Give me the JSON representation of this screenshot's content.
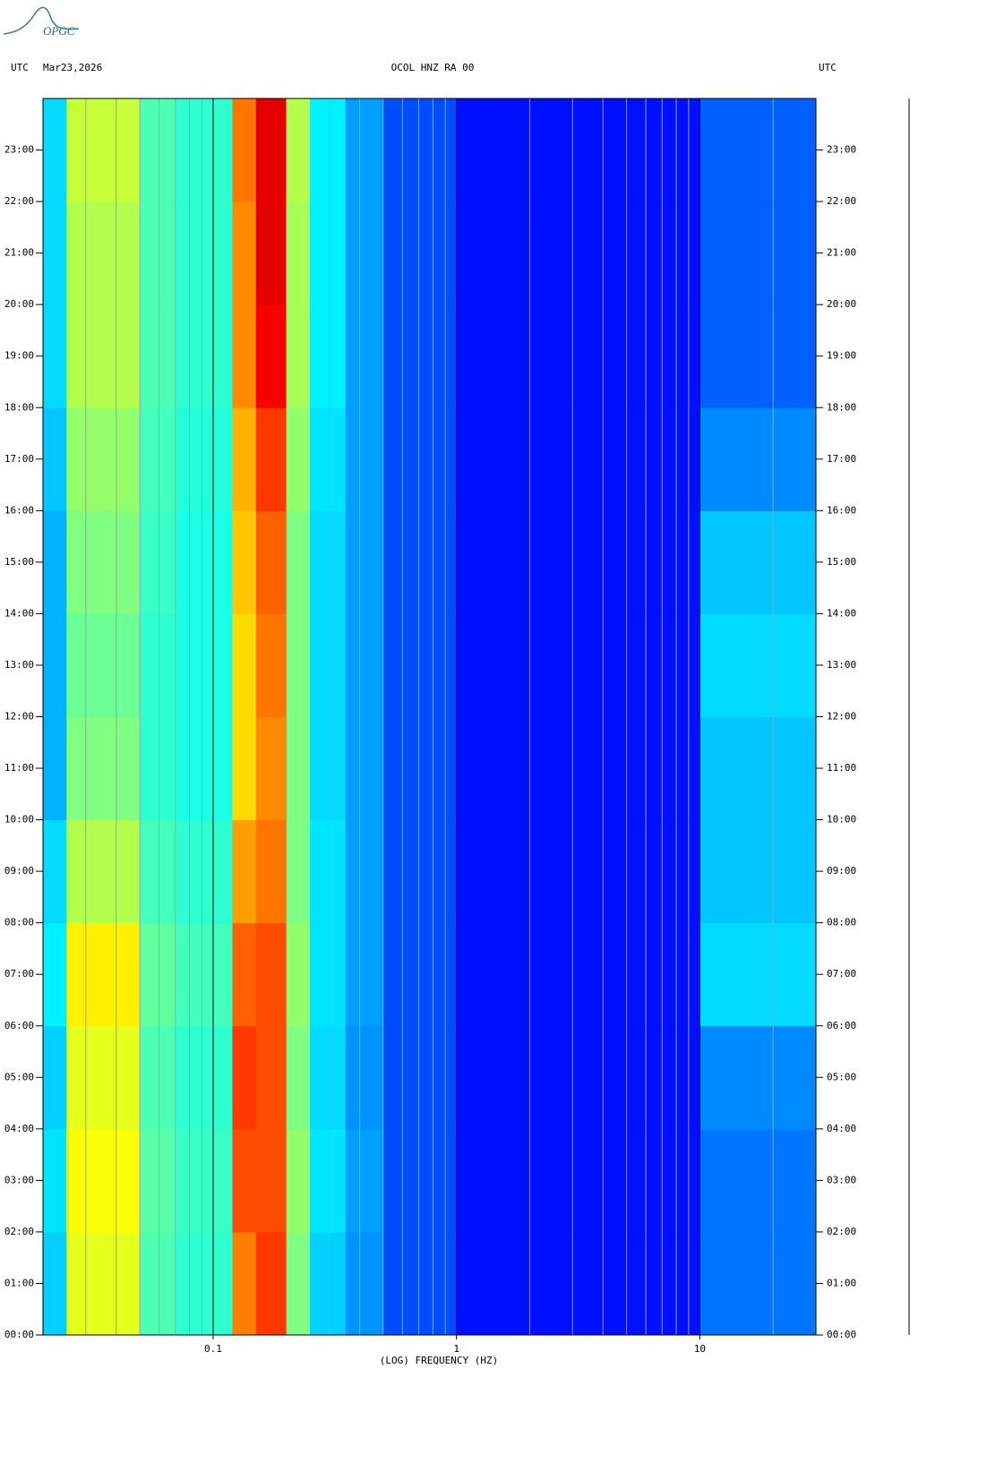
{
  "chart_data": {
    "type": "spectrogram",
    "logo": "OPGC",
    "time_zone": "UTC",
    "date": "Mar23,2026",
    "title": "OCOL HNZ RA 00",
    "x_label": "(LOG) FREQUENCY (HZ)",
    "x_log": true,
    "colormap": "jet",
    "xlim": [
      0.02,
      30
    ],
    "xticks": [
      {
        "value": 0.1,
        "label": "0.1"
      },
      1,
      10
    ],
    "xminorticks": [
      0.03,
      0.04,
      0.05,
      0.06,
      0.07,
      0.08,
      0.09,
      0.2,
      0.3,
      0.4,
      0.5,
      0.6,
      0.7,
      0.8,
      0.9,
      2,
      3,
      4,
      5,
      6,
      7,
      8,
      9,
      20
    ],
    "ylim": [
      0,
      24
    ],
    "yticks": [
      {
        "value": 0,
        "label": "00:00"
      },
      {
        "value": 1,
        "label": "01:00"
      },
      {
        "value": 2,
        "label": "02:00"
      },
      {
        "value": 3,
        "label": "03:00"
      },
      {
        "value": 4,
        "label": "04:00"
      },
      {
        "value": 5,
        "label": "05:00"
      },
      {
        "value": 6,
        "label": "06:00"
      },
      {
        "value": 7,
        "label": "07:00"
      },
      {
        "value": 8,
        "label": "08:00"
      },
      {
        "value": 9,
        "label": "09:00"
      },
      {
        "value": 10,
        "label": "10:00"
      },
      {
        "value": 11,
        "label": "11:00"
      },
      {
        "value": 12,
        "label": "12:00"
      },
      {
        "value": 13,
        "label": "13:00"
      },
      {
        "value": 14,
        "label": "14:00"
      },
      {
        "value": 15,
        "label": "15:00"
      },
      {
        "value": 16,
        "label": "16:00"
      },
      {
        "value": 17,
        "label": "17:00"
      },
      {
        "value": 18,
        "label": "18:00"
      },
      {
        "value": 19,
        "label": "19:00"
      },
      {
        "value": 20,
        "label": "20:00"
      },
      {
        "value": 21,
        "label": "21:00"
      },
      {
        "value": 22,
        "label": "22:00"
      },
      {
        "value": 23,
        "label": "23:00"
      }
    ],
    "bins": [
      0.02,
      0.025,
      0.05,
      0.07,
      0.12,
      0.15,
      0.2,
      0.25,
      0.35,
      0.5,
      1,
      10,
      30
    ],
    "y_bins": [
      0,
      2,
      4,
      6,
      8,
      10,
      12,
      14,
      16,
      18,
      20,
      22,
      24
    ],
    "z": [
      [
        0.33,
        0.6,
        0.45,
        0.42,
        0.75,
        0.82,
        0.5,
        0.33,
        0.27,
        0.2,
        0.14,
        0.24
      ],
      [
        0.35,
        0.62,
        0.46,
        0.43,
        0.8,
        0.8,
        0.52,
        0.35,
        0.28,
        0.2,
        0.14,
        0.24
      ],
      [
        0.33,
        0.6,
        0.45,
        0.42,
        0.82,
        0.8,
        0.5,
        0.34,
        0.27,
        0.2,
        0.14,
        0.26
      ],
      [
        0.36,
        0.64,
        0.47,
        0.44,
        0.78,
        0.8,
        0.52,
        0.35,
        0.28,
        0.2,
        0.14,
        0.34
      ],
      [
        0.34,
        0.55,
        0.44,
        0.42,
        0.72,
        0.76,
        0.5,
        0.35,
        0.28,
        0.2,
        0.14,
        0.32
      ],
      [
        0.3,
        0.5,
        0.42,
        0.4,
        0.66,
        0.74,
        0.5,
        0.34,
        0.28,
        0.2,
        0.14,
        0.32
      ],
      [
        0.3,
        0.48,
        0.42,
        0.4,
        0.66,
        0.76,
        0.5,
        0.34,
        0.28,
        0.2,
        0.14,
        0.34
      ],
      [
        0.3,
        0.5,
        0.43,
        0.4,
        0.68,
        0.78,
        0.5,
        0.34,
        0.28,
        0.2,
        0.14,
        0.32
      ],
      [
        0.32,
        0.52,
        0.44,
        0.41,
        0.7,
        0.82,
        0.52,
        0.35,
        0.28,
        0.2,
        0.14,
        0.26
      ],
      [
        0.34,
        0.55,
        0.45,
        0.42,
        0.74,
        0.88,
        0.54,
        0.36,
        0.28,
        0.2,
        0.14,
        0.22
      ],
      [
        0.34,
        0.55,
        0.45,
        0.42,
        0.74,
        0.9,
        0.54,
        0.36,
        0.28,
        0.2,
        0.14,
        0.22
      ],
      [
        0.34,
        0.57,
        0.45,
        0.42,
        0.76,
        0.9,
        0.55,
        0.36,
        0.28,
        0.2,
        0.14,
        0.22
      ]
    ]
  }
}
